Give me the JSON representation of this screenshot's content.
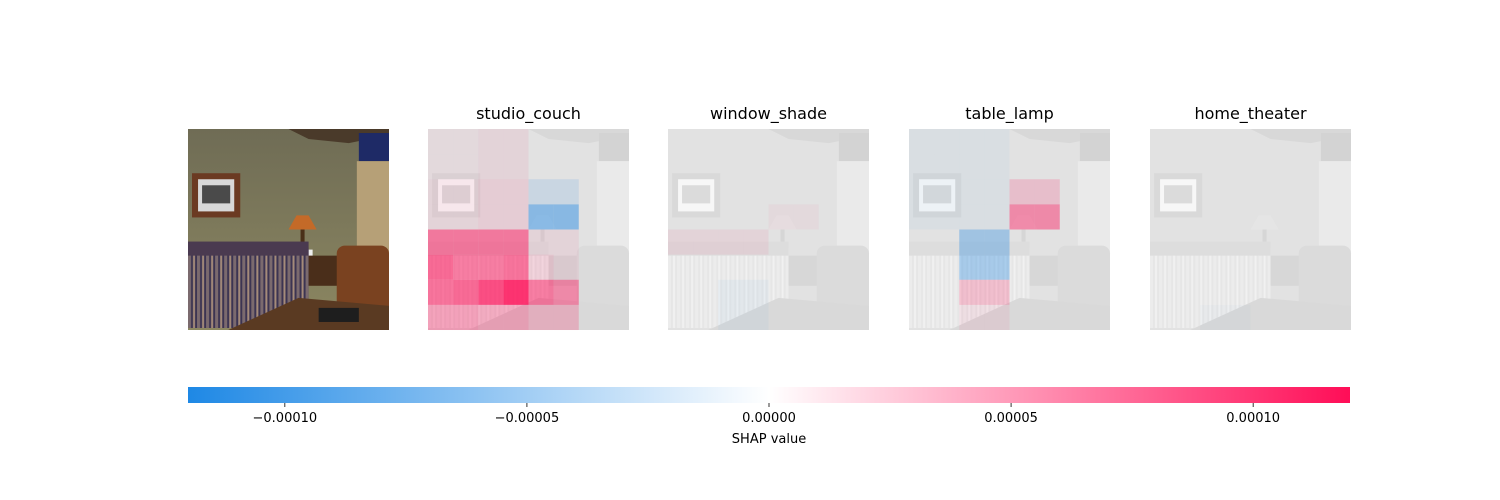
{
  "chart_data": {
    "type": "heatmap",
    "title": "",
    "image_label": "living room photo",
    "grid_size": 8,
    "panels": [
      {
        "title": "studio_couch",
        "values": [
          [
            5e-06,
            5e-06,
            8e-06,
            8e-06,
            0,
            0,
            0,
            0
          ],
          [
            5e-06,
            5e-06,
            8e-06,
            8e-06,
            0,
            0,
            0,
            0
          ],
          [
            8e-06,
            8e-06,
            1.2e-05,
            1.2e-05,
            -1.5e-05,
            -1.5e-05,
            0,
            0
          ],
          [
            8e-06,
            8e-06,
            1.2e-05,
            1.2e-05,
            -5.5e-05,
            -5.5e-05,
            0,
            0
          ],
          [
            6e-05,
            6e-05,
            6e-05,
            6e-05,
            8e-06,
            8e-06,
            0,
            0
          ],
          [
            7e-05,
            6e-05,
            6e-05,
            6.5e-05,
            1.5e-05,
            8e-06,
            0,
            0
          ],
          [
            6.5e-05,
            7e-05,
            8.5e-05,
            0.0001,
            6e-05,
            5e-05,
            0,
            0
          ],
          [
            4e-05,
            4e-05,
            3.5e-05,
            3.5e-05,
            2.5e-05,
            2.5e-05,
            0,
            0
          ]
        ]
      },
      {
        "title": "window_shade",
        "values": [
          [
            0,
            0,
            0,
            0,
            0,
            0,
            0,
            0
          ],
          [
            0,
            0,
            0,
            0,
            0,
            0,
            0,
            0
          ],
          [
            0,
            0,
            0,
            0,
            0,
            0,
            0,
            0
          ],
          [
            0,
            0,
            0,
            0,
            5e-06,
            5e-06,
            0,
            0
          ],
          [
            8e-06,
            8e-06,
            8e-06,
            8e-06,
            0,
            0,
            0,
            0
          ],
          [
            0,
            0,
            0,
            0,
            0,
            0,
            0,
            0
          ],
          [
            0,
            0,
            -5e-06,
            -5e-06,
            0,
            0,
            0,
            0
          ],
          [
            0,
            0,
            -5e-06,
            -5e-06,
            0,
            0,
            0,
            0
          ]
        ]
      },
      {
        "title": "table_lamp",
        "values": [
          [
            -5e-06,
            -5e-06,
            -5e-06,
            -5e-06,
            0,
            0,
            0,
            0
          ],
          [
            -5e-06,
            -5e-06,
            -5e-06,
            -5e-06,
            0,
            0,
            0,
            0
          ],
          [
            -5e-06,
            -5e-06,
            -5e-06,
            -5e-06,
            2e-05,
            2e-05,
            0,
            0
          ],
          [
            -5e-06,
            -5e-06,
            -5e-06,
            -5e-06,
            5e-05,
            5e-05,
            0,
            0
          ],
          [
            0,
            0,
            -4e-05,
            -4e-05,
            0,
            0,
            0,
            0
          ],
          [
            0,
            0,
            -4e-05,
            -4e-05,
            0,
            0,
            0,
            0
          ],
          [
            0,
            0,
            2.5e-05,
            2.5e-05,
            0,
            0,
            0,
            0
          ],
          [
            0,
            0,
            8e-06,
            8e-06,
            0,
            0,
            0,
            0
          ]
        ]
      },
      {
        "title": "home_theater",
        "values": [
          [
            0,
            0,
            0,
            0,
            0,
            0,
            0,
            0
          ],
          [
            0,
            0,
            0,
            0,
            0,
            0,
            0,
            0
          ],
          [
            0,
            0,
            0,
            0,
            0,
            0,
            0,
            0
          ],
          [
            0,
            0,
            0,
            0,
            0,
            0,
            0,
            0
          ],
          [
            0,
            0,
            0,
            0,
            0,
            0,
            0,
            0
          ],
          [
            0,
            0,
            0,
            0,
            0,
            0,
            0,
            0
          ],
          [
            0,
            0,
            0,
            0,
            0,
            0,
            0,
            0
          ],
          [
            0,
            0,
            -3e-06,
            -3e-06,
            0,
            0,
            0,
            0
          ]
        ]
      }
    ],
    "colorbar": {
      "label": "SHAP value",
      "range": [
        -0.00012,
        0.00012
      ],
      "ticks": [
        {
          "value": -0.0001,
          "label": "−0.00010"
        },
        {
          "value": -5e-05,
          "label": "−0.00005"
        },
        {
          "value": 0,
          "label": "0.00000"
        },
        {
          "value": 5e-05,
          "label": "0.00005"
        },
        {
          "value": 0.0001,
          "label": "0.00010"
        }
      ],
      "colors": {
        "negative": "#1e88e5",
        "zero": "#ffffff",
        "positive": "#ff0d57"
      }
    }
  }
}
